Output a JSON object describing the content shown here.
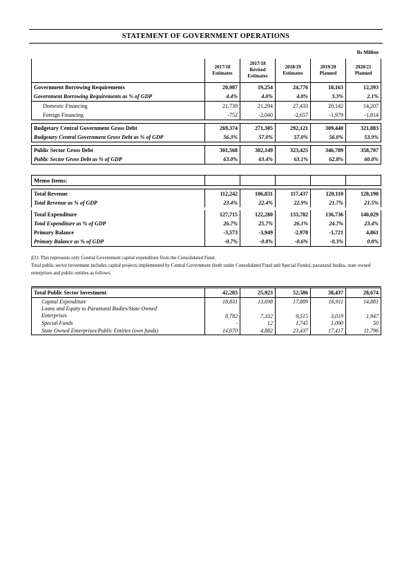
{
  "title": "STATEMENT OF GOVERNMENT OPERATIONS",
  "units": "Rs Million",
  "columns": [
    {
      "year": "2017/18",
      "sub": "Estimates"
    },
    {
      "year": "2017/18",
      "sub": "Revised Estimates"
    },
    {
      "year": "2018/19",
      "sub": "Estimates"
    },
    {
      "year": "2019/20",
      "sub": "Planned"
    },
    {
      "year": "2020/21",
      "sub": "Planned"
    }
  ],
  "main": [
    {
      "label": "Government Borrowing Requirements",
      "style": "b",
      "v": [
        "20,987",
        "19,254",
        "24,776",
        "18,163",
        "12,393"
      ]
    },
    {
      "label": "Government Borrowing Requirements as % of GDP",
      "style": "bi",
      "v": [
        "4.4%",
        "4.0%",
        "4.8%",
        "3.3%",
        "2.1%"
      ]
    },
    {
      "label": "Domestic Financing",
      "style": "ind",
      "v": [
        "21,739",
        "21,294",
        "27,433",
        "20,142",
        "14,207"
      ]
    },
    {
      "label": "Foreign Financing",
      "style": "ind",
      "v": [
        "-752",
        "-2,040",
        "-2,657",
        "-1,979",
        "-1,814"
      ]
    },
    {
      "label": "Budgetary Central Government Gross Debt",
      "style": "b",
      "v": [
        "269,374",
        "271,305",
        "292,121",
        "309,440",
        "321,883"
      ]
    },
    {
      "label": "Budgetary Central Government Gross Debt as % of GDP",
      "style": "bi",
      "v": [
        "56.3%",
        "57.0%",
        "57.0%",
        "56.0%",
        "53.9%"
      ]
    },
    {
      "label": "Public Sector Gross Debt",
      "style": "b",
      "v": [
        "301,568",
        "302,149",
        "323,425",
        "346,789",
        "358,707"
      ]
    },
    {
      "label": "Public Sector Gross Debt as % of GDP",
      "style": "bi",
      "v": [
        "63.0%",
        "63.4%",
        "63.1%",
        "62.8%",
        "60.0%"
      ]
    }
  ],
  "memo": {
    "heading": "Memo Items:",
    "rows": [
      {
        "label": "Total Revenue",
        "style": "b",
        "v": [
          "112,242",
          "106,831",
          "117,437",
          "120,110",
          "128,190"
        ]
      },
      {
        "label": "Total Revenue as % of GDP",
        "style": "bi",
        "v": [
          "23.4%",
          "22.4%",
          "22.9%",
          "21.7%",
          "21.5%"
        ]
      },
      {
        "label": "Total Expenditure",
        "style": "b",
        "v": [
          "127,715",
          "122,280",
          "133,782",
          "136,736",
          "140,029"
        ]
      },
      {
        "label": "Total Expenditure as % of GDP",
        "style": "bi",
        "v": [
          "26.7%",
          "25.7%",
          "26.1%",
          "24.7%",
          "23.4%"
        ]
      },
      {
        "label": "Primary Balance",
        "style": "b",
        "v": [
          "-3,573",
          "-3,949",
          "-2,970",
          "-1,721",
          "4,861"
        ]
      },
      {
        "label": "Primary Balance as % of GDP",
        "style": "bi",
        "v": [
          "-0.7%",
          "-0.8%",
          "-0.6%",
          "-0.3%",
          "0.8%"
        ]
      }
    ]
  },
  "notes": {
    "line1_marker": "f(1)",
    "line1_text": ": This represents only Central Government capital expenditure from the Consolidated Fund.",
    "line2": "Total public sector investment includes capital projects implemented by Central Government (both under Consolidated Fund and Special Funds), parastatal bodies, state owned enterprises and public entities as follows:"
  },
  "investment": {
    "total": {
      "label": "Total Public Sector Investment",
      "v": [
        "42,283",
        "25,923",
        "52,586",
        "38,437",
        "28,674"
      ]
    },
    "rows": [
      {
        "label": "Capital Expenditure",
        "v": [
          "18,831",
          "13,698",
          "17,889",
          "16,911",
          "14,881"
        ]
      },
      {
        "label": "Loans and Equity to Parastatal Bodies/State Owned",
        "label2": "Enterprises",
        "v": [
          "8,782",
          "7,332",
          "9,515",
          "3,019",
          "1,947"
        ]
      },
      {
        "label": "Special Funds",
        "v": [
          "-",
          "12",
          "1,745",
          "1,090",
          "50"
        ]
      },
      {
        "label": "State Owned Enterprises/Public Entities (own funds)",
        "v": [
          "14,670",
          "4,882",
          "23,437",
          "17,417",
          "11,796"
        ]
      }
    ]
  }
}
